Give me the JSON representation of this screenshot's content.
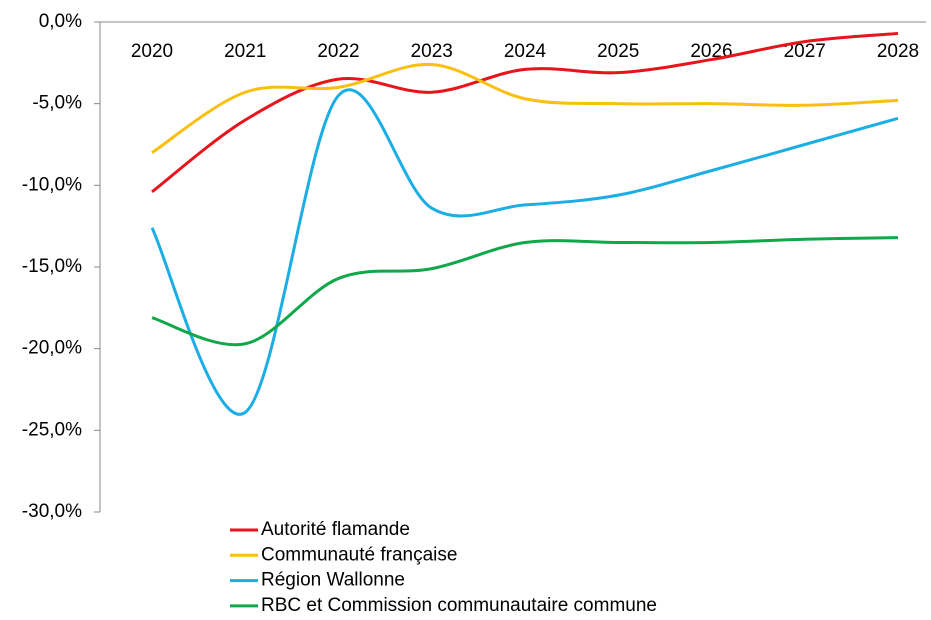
{
  "chart_data": {
    "type": "line",
    "categories": [
      "2020",
      "2021",
      "2022",
      "2023",
      "2024",
      "2025",
      "2026",
      "2027",
      "2028"
    ],
    "series": [
      {
        "name": "Autorité flamande",
        "color": "#e8141b",
        "values": [
          -10.4,
          -6.0,
          -3.5,
          -4.3,
          -2.9,
          -3.1,
          -2.3,
          -1.2,
          -0.7
        ]
      },
      {
        "name": "Communauté française",
        "color": "#fbbf0f",
        "values": [
          -8.0,
          -4.3,
          -4.0,
          -2.6,
          -4.7,
          -5.0,
          -5.0,
          -5.1,
          -4.8
        ]
      },
      {
        "name": "Région Wallonne",
        "color": "#1aaee5",
        "values": [
          -12.6,
          -23.9,
          -4.5,
          -11.4,
          -11.2,
          -10.6,
          -9.1,
          -7.5,
          -5.9
        ]
      },
      {
        "name": "RBC et Commission communautaire commune",
        "color": "#10a84a",
        "values": [
          -18.1,
          -19.7,
          -15.7,
          -15.1,
          -13.5,
          -13.5,
          -13.5,
          -13.3,
          -13.2
        ]
      }
    ],
    "ylim": [
      -30,
      0
    ],
    "yticks": [
      {
        "value": 0,
        "label": "0,0%"
      },
      {
        "value": -5,
        "label": "-5,0%"
      },
      {
        "value": -10,
        "label": "-10,0%"
      },
      {
        "value": -15,
        "label": "-15,0%"
      },
      {
        "value": -20,
        "label": "-20,0%"
      },
      {
        "value": -25,
        "label": "-25,0%"
      },
      {
        "value": -30,
        "label": "-30,0%"
      }
    ],
    "smooth": true
  }
}
